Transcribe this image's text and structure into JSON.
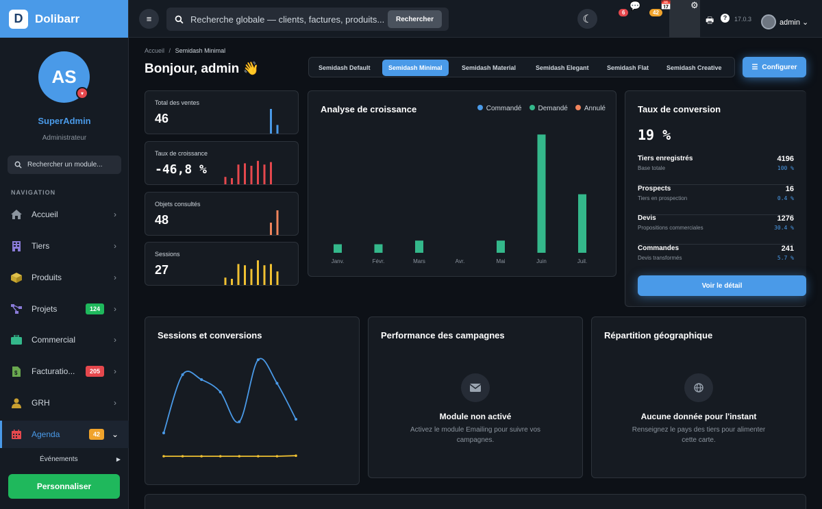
{
  "brand": {
    "name": "Dolibarr",
    "logo_letter": "D"
  },
  "profile": {
    "initials": "AS",
    "name": "SuperAdmin",
    "role": "Administrateur"
  },
  "sidebar": {
    "search_placeholder": "Rechercher un module...",
    "nav_label": "NAVIGATION",
    "items": [
      {
        "label": "Accueil",
        "icon": "home-icon"
      },
      {
        "label": "Tiers",
        "icon": "building-icon"
      },
      {
        "label": "Produits",
        "icon": "box-icon"
      },
      {
        "label": "Projets",
        "icon": "project-icon",
        "badge": "124",
        "badge_color": "#1fb85c"
      },
      {
        "label": "Commercial",
        "icon": "briefcase-icon"
      },
      {
        "label": "Facturatio...",
        "icon": "invoice-icon",
        "badge": "205",
        "badge_color": "#e5484d"
      },
      {
        "label": "GRH",
        "icon": "user-tie-icon"
      },
      {
        "label": "Agenda",
        "icon": "calendar-icon",
        "badge": "42",
        "badge_color": "#f0a32b",
        "active": true
      }
    ],
    "subitem": "Événements",
    "customize": "Personnaliser"
  },
  "topbar": {
    "search_placeholder": "Recherche globale — clients, factures, produits...",
    "search_button": "Rechercher",
    "messages_badge": "6",
    "agenda_badge": "42",
    "version": "17.0.3",
    "user": "admin"
  },
  "breadcrumb": {
    "home": "Accueil",
    "separator": "/",
    "current": "Semidash Minimal"
  },
  "greeting": "Bonjour, admin 👋",
  "themes": [
    "Semidash Default",
    "Semidash Minimal",
    "Semidash Material",
    "Semidash Elegant",
    "Semidash Flat",
    "Semidash Creative"
  ],
  "active_theme": "Semidash Minimal",
  "configure": "Configurer",
  "kpis": [
    {
      "label": "Total des ventes",
      "value": "46",
      "color": "#4a9ae8",
      "bars": [
        0,
        0,
        0,
        0,
        0,
        0,
        0,
        1,
        0.35
      ]
    },
    {
      "label": "Taux de croissance",
      "value": "-46,8 %",
      "color": "#e5484d",
      "bars": [
        0.3,
        0.25,
        0.8,
        0.85,
        0.75,
        0.95,
        0.8,
        0.9,
        0
      ]
    },
    {
      "label": "Objets consultés",
      "value": "48",
      "color": "#f0845c",
      "bars": [
        0,
        0,
        0,
        0,
        0,
        0,
        0,
        0.5,
        1
      ]
    },
    {
      "label": "Sessions",
      "value": "27",
      "color": "#f0c132",
      "bars": [
        0.3,
        0.25,
        0.85,
        0.8,
        0.65,
        1,
        0.8,
        0.85,
        0.55
      ]
    }
  ],
  "growth_chart": {
    "title": "Analyse de croissance",
    "legend": [
      {
        "name": "Commandé",
        "color": "#4a9ae8"
      },
      {
        "name": "Demandé",
        "color": "#34b88b"
      },
      {
        "name": "Annulé",
        "color": "#f0845c"
      }
    ]
  },
  "chart_data": {
    "type": "bar",
    "categories": [
      "Janv.",
      "Févr.",
      "Mars",
      "Avr.",
      "Mai",
      "Juin",
      "Juil."
    ],
    "series": [
      {
        "name": "Commandé",
        "values": [
          0,
          0,
          0,
          0,
          0,
          0,
          0
        ]
      },
      {
        "name": "Demandé",
        "values": [
          7,
          7,
          10,
          0,
          10,
          97,
          48
        ]
      },
      {
        "name": "Annulé",
        "values": [
          0,
          0,
          0,
          0,
          0,
          0,
          0
        ]
      }
    ],
    "title": "Analyse de croissance",
    "ylim": [
      0,
      100
    ]
  },
  "conversion": {
    "title": "Taux de conversion",
    "rate": "19 %",
    "rows": [
      {
        "name": "Tiers enregistrés",
        "sub": "Base totale",
        "value": "4196",
        "pct": "100 %"
      },
      {
        "name": "Prospects",
        "sub": "Tiers en prospection",
        "value": "16",
        "pct": "0.4 %"
      },
      {
        "name": "Devis",
        "sub": "Propositions commerciales",
        "value": "1276",
        "pct": "30.4 %"
      },
      {
        "name": "Commandes",
        "sub": "Devis transformés",
        "value": "241",
        "pct": "5.7 %"
      }
    ],
    "button": "Voir le détail"
  },
  "sessions_chart": {
    "title": "Sessions et conversions",
    "line_color": "#4a9ae8",
    "flat_color": "#f0c132",
    "points": [
      5,
      52,
      48,
      38,
      14,
      64,
      45,
      16
    ],
    "flat": [
      1,
      1,
      1,
      1,
      1,
      1,
      1,
      1.2
    ]
  },
  "campaigns": {
    "title": "Performance des campagnes",
    "empty_title": "Module non activé",
    "empty_desc": "Activez le module Emailing pour suivre vos campagnes."
  },
  "geo": {
    "title": "Répartition géographique",
    "empty_title": "Aucune donnée pour l'instant",
    "empty_desc": "Renseignez le pays des tiers pour alimenter cette carte."
  }
}
